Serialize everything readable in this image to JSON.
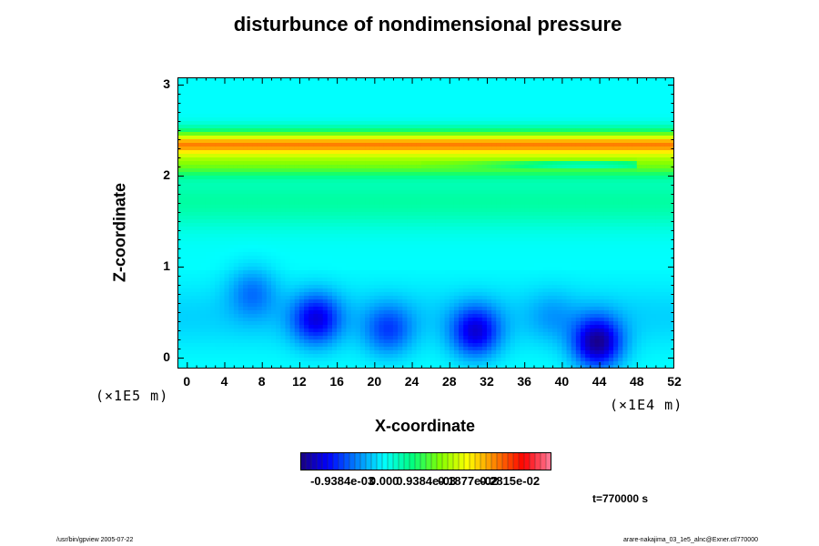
{
  "chart_data": {
    "type": "heatmap",
    "title": "disturbunce of nondimensional pressure",
    "xlabel": "X-coordinate",
    "ylabel": "Z-coordinate",
    "x_unit": "(×1E4 m)",
    "z_unit": "(×1E5 m)",
    "xlim": [
      -1,
      52
    ],
    "ylim": [
      -0.12,
      3.08
    ],
    "x_ticks": [
      "0",
      "4",
      "8",
      "12",
      "16",
      "20",
      "24",
      "28",
      "32",
      "36",
      "40",
      "44",
      "48",
      "52"
    ],
    "y_ticks": [
      "0",
      "1",
      "2",
      "3"
    ],
    "colorbar": {
      "labels": [
        "-0.9384e-03",
        "0.000",
        "0.9384e-03",
        "0.1877e-02",
        "0.2815e-02"
      ],
      "values": [
        -0.0009384,
        0.0,
        0.0009384,
        0.001877,
        0.002815
      ],
      "range": [
        -0.00188,
        0.00375
      ]
    },
    "background_value": 0.0,
    "features": [
      {
        "type": "horizontal-band",
        "z_center": 2.33,
        "z_halfwidth": 0.16,
        "value": 0.0021
      },
      {
        "type": "horizontal-band",
        "z_center": 2.35,
        "z_halfwidth": 0.07,
        "value": 0.0004
      },
      {
        "type": "horizontal-band",
        "z_center": 2.1,
        "z_halfwidth": 0.12,
        "value": 0.0008
      },
      {
        "type": "horizontal-band",
        "z_center": 1.72,
        "z_halfwidth": 0.3,
        "value": 0.00045
      },
      {
        "type": "elongated-low",
        "x_from": 25,
        "x_to": 48,
        "z": 2.12,
        "value": -0.0011
      },
      {
        "type": "low",
        "x": 7.0,
        "z": 0.72,
        "value": -0.0006
      },
      {
        "type": "low",
        "x": 13.8,
        "z": 0.42,
        "value": -0.0012
      },
      {
        "type": "low",
        "x": 21.5,
        "z": 0.3,
        "value": -0.0008
      },
      {
        "type": "low",
        "x": 30.8,
        "z": 0.28,
        "value": -0.0013
      },
      {
        "type": "low",
        "x": 43.8,
        "z": 0.16,
        "value": -0.0017
      },
      {
        "type": "low",
        "x": 39.0,
        "z": 0.45,
        "value": -0.0003
      }
    ]
  },
  "time_label": "t=770000 s",
  "footer_left": "/usr/bin/gpview 2005-07-22",
  "footer_right": "arare-nakajima_03_1e5_alnc@Exner.ctl770000",
  "colors": {
    "scale": [
      "#1a0080",
      "#0000ff",
      "#0080ff",
      "#00ffff",
      "#00ff80",
      "#80ff00",
      "#ffff00",
      "#ff8000",
      "#ff0000",
      "#ff80a0"
    ]
  }
}
